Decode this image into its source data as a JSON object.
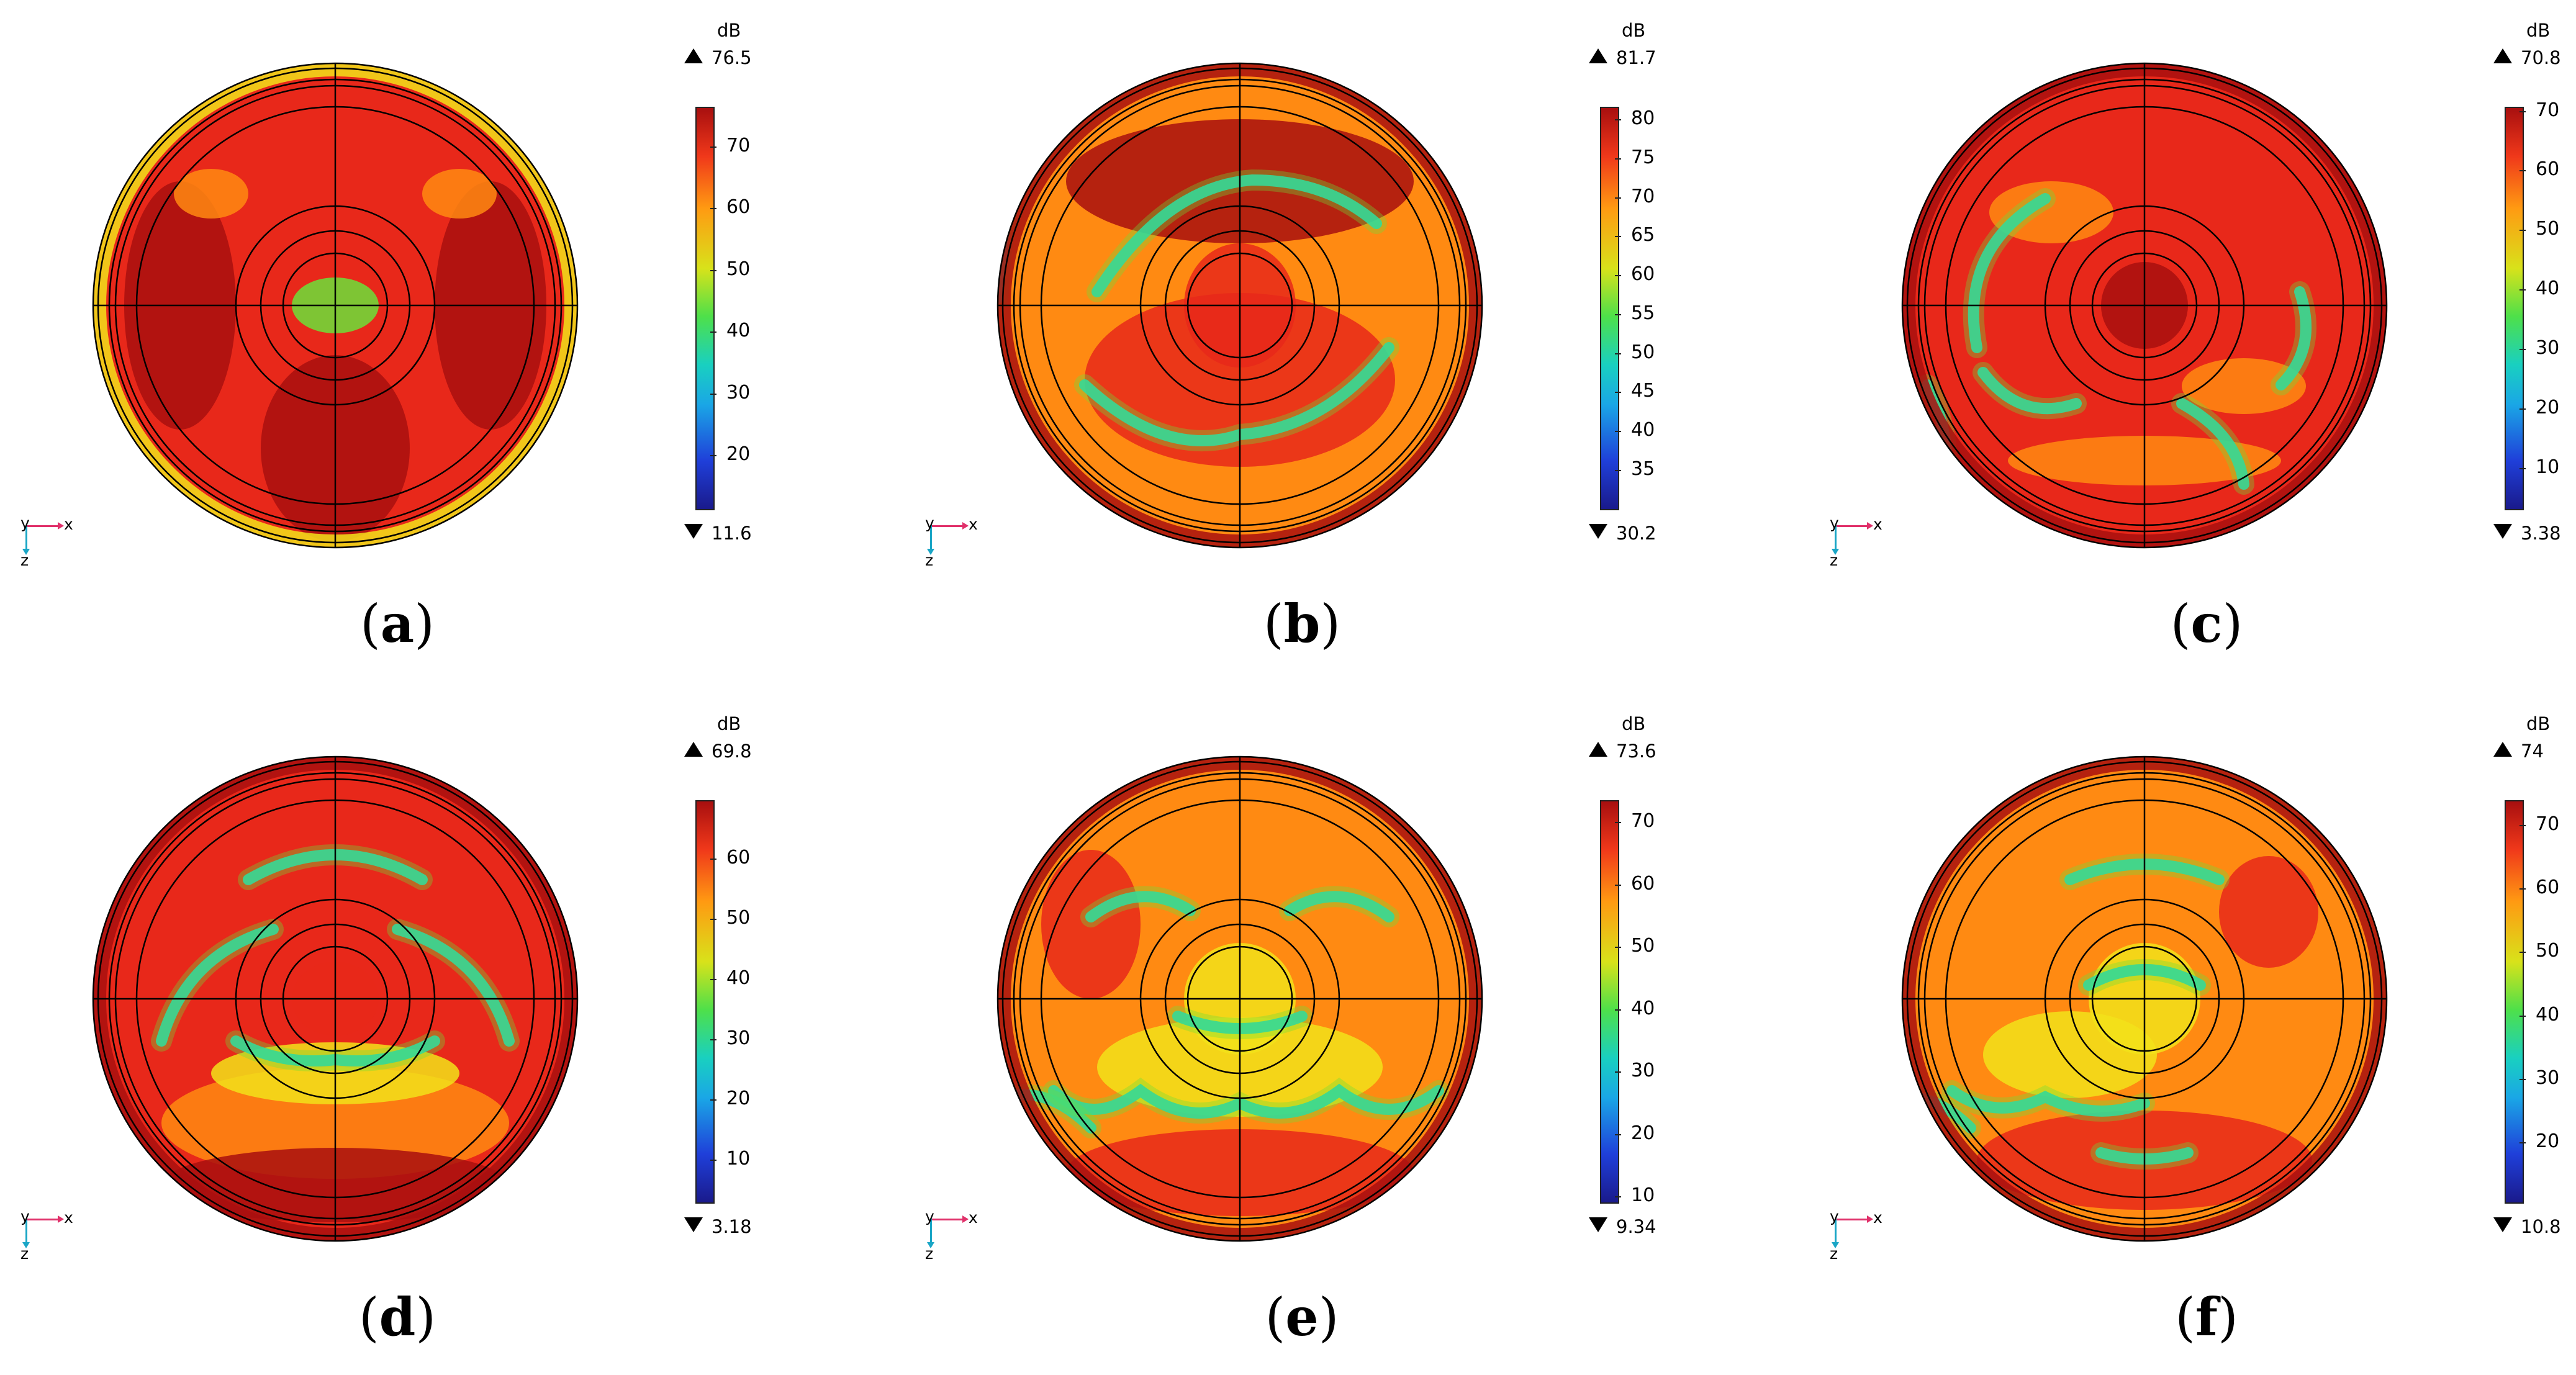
{
  "colors": {
    "dark_red": "#a80f0f",
    "red": "#e8281a",
    "orange": "#ff8a12",
    "yellow": "#f2e21a",
    "green": "#6be03a",
    "cyan": "#19d6c8",
    "blue": "#1f3fd9",
    "navy": "#1a1a8c",
    "outline": "#000000"
  },
  "axis_labels": {
    "x": "x",
    "y": "y",
    "z": "z"
  },
  "panels": [
    {
      "caption": "a",
      "unit": "dB",
      "max": "76.5",
      "min": "11.6",
      "ticks": [
        "70",
        "60",
        "50",
        "40",
        "30",
        "20"
      ],
      "tick_values": [
        70,
        60,
        50,
        40,
        30,
        20
      ],
      "range": [
        11.6,
        76.5
      ]
    },
    {
      "caption": "b",
      "unit": "dB",
      "max": "81.7",
      "min": "30.2",
      "ticks": [
        "80",
        "75",
        "70",
        "65",
        "60",
        "55",
        "50",
        "45",
        "40",
        "35"
      ],
      "tick_values": [
        80,
        75,
        70,
        65,
        60,
        55,
        50,
        45,
        40,
        35
      ],
      "range": [
        30.2,
        81.7
      ]
    },
    {
      "caption": "c",
      "unit": "dB",
      "max": "70.8",
      "min": "3.38",
      "ticks": [
        "70",
        "60",
        "50",
        "40",
        "30",
        "20",
        "10"
      ],
      "tick_values": [
        70,
        60,
        50,
        40,
        30,
        20,
        10
      ],
      "range": [
        3.38,
        70.8
      ]
    },
    {
      "caption": "d",
      "unit": "dB",
      "max": "69.8",
      "min": "3.18",
      "ticks": [
        "60",
        "50",
        "40",
        "30",
        "20",
        "10"
      ],
      "tick_values": [
        60,
        50,
        40,
        30,
        20,
        10
      ],
      "range": [
        3.18,
        69.8
      ]
    },
    {
      "caption": "e",
      "unit": "dB",
      "max": "73.6",
      "min": "9.34",
      "ticks": [
        "70",
        "60",
        "50",
        "40",
        "30",
        "20",
        "10"
      ],
      "tick_values": [
        70,
        60,
        50,
        40,
        30,
        20,
        10
      ],
      "range": [
        9.34,
        73.6
      ]
    },
    {
      "caption": "f",
      "unit": "dB",
      "max": "74",
      "min": "10.8",
      "ticks": [
        "70",
        "60",
        "50",
        "40",
        "30",
        "20"
      ],
      "tick_values": [
        70,
        60,
        50,
        40,
        30,
        20
      ],
      "range": [
        10.8,
        74
      ]
    }
  ]
}
